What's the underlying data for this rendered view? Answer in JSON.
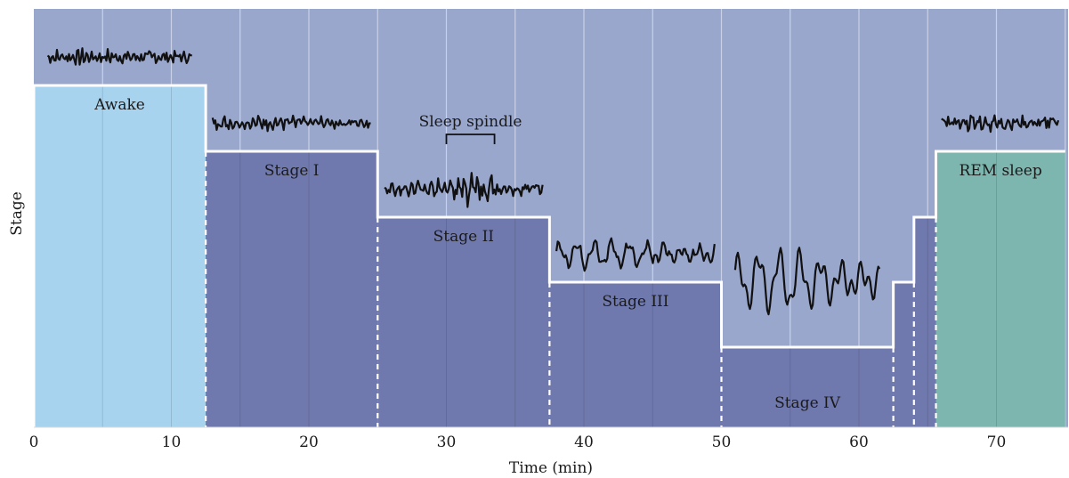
{
  "chart_data": {
    "type": "area",
    "xlabel": "Time (min)",
    "ylabel": "Stage",
    "xlim": [
      0,
      75
    ],
    "x_ticks": [
      "0",
      "10",
      "20",
      "30",
      "40",
      "50",
      "60",
      "70"
    ],
    "x_tick_values": [
      0,
      10,
      20,
      30,
      40,
      50,
      60,
      70
    ],
    "grid": true,
    "levels": [
      {
        "key": "awake",
        "label": "Awake",
        "rank": 5
      },
      {
        "key": "rem",
        "label": "REM sleep",
        "rank": 4
      },
      {
        "key": "stage1",
        "label": "Stage I",
        "rank": 4
      },
      {
        "key": "stage2",
        "label": "Stage II",
        "rank": 3
      },
      {
        "key": "stage3",
        "label": "Stage III",
        "rank": 2
      },
      {
        "key": "stage4",
        "label": "Stage IV",
        "rank": 1
      }
    ],
    "segments": [
      {
        "stage": "awake",
        "start": 0,
        "end": 12.5,
        "label": "Awake"
      },
      {
        "stage": "stage1",
        "start": 12.5,
        "end": 25,
        "label": "Stage I"
      },
      {
        "stage": "stage2",
        "start": 25,
        "end": 37.5,
        "label": "Stage II"
      },
      {
        "stage": "stage3",
        "start": 37.5,
        "end": 50,
        "label": "Stage III"
      },
      {
        "stage": "stage4",
        "start": 50,
        "end": 62.5,
        "label": "Stage IV"
      },
      {
        "stage": "stage3",
        "start": 62.5,
        "end": 64,
        "label": ""
      },
      {
        "stage": "stage2",
        "start": 64,
        "end": 65.6,
        "label": ""
      },
      {
        "stage": "rem",
        "start": 65.6,
        "end": 75,
        "label": "REM sleep"
      }
    ],
    "annotations": [
      {
        "text": "Sleep spindle",
        "x_start": 30,
        "x_end": 33.5
      }
    ],
    "eeg_traces": [
      {
        "stage": "awake",
        "x_start": 1,
        "x_end": 11.5,
        "amplitude": 0.2,
        "cycles": 34,
        "noise": 0.6
      },
      {
        "stage": "stage1",
        "x_start": 13,
        "x_end": 24.5,
        "amplitude": 0.25,
        "cycles": 28,
        "noise": 0.55
      },
      {
        "stage": "stage2",
        "x_start": 25.5,
        "x_end": 37,
        "amplitude": 0.35,
        "cycles": 24,
        "noise": 0.5,
        "spindle": [
          30,
          33.5
        ]
      },
      {
        "stage": "stage3",
        "x_start": 38,
        "x_end": 49.5,
        "amplitude": 0.7,
        "cycles": 9,
        "noise": 0.35
      },
      {
        "stage": "stage4",
        "x_start": 51,
        "x_end": 61.5,
        "amplitude": 1.6,
        "cycles": 7,
        "noise": 0.15
      },
      {
        "stage": "rem",
        "x_start": 66,
        "x_end": 74.5,
        "amplitude": 0.3,
        "cycles": 16,
        "noise": 0.55
      }
    ],
    "colors": {
      "background": "#9aa7cc",
      "grid": "#c9d1e8",
      "awake": "#a8d3ef",
      "sleep": "#7079ae",
      "rem": "#7db5af",
      "outline": "#ffffff",
      "trace": "#111111"
    }
  }
}
